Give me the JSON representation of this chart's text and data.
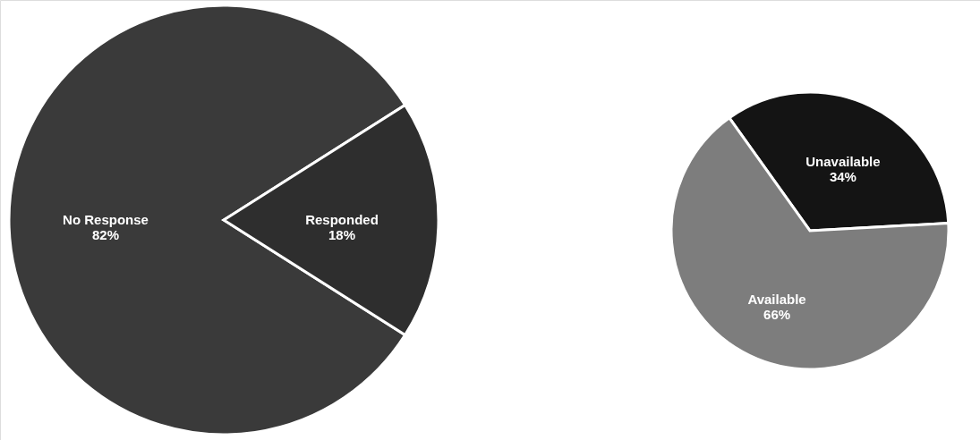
{
  "chart_data": [
    {
      "type": "pie",
      "categories": [
        "No Response",
        "Responded"
      ],
      "values": [
        82,
        18
      ],
      "colors": [
        "#3a3a3a",
        "#2e2e2e"
      ],
      "value_labels": [
        "82%",
        "18%"
      ]
    },
    {
      "type": "pie",
      "categories": [
        "Unavailable",
        "Available"
      ],
      "values": [
        34,
        66
      ],
      "colors": [
        "#141414",
        "#7d7d7d"
      ],
      "value_labels": [
        "34%",
        "66%"
      ]
    }
  ]
}
